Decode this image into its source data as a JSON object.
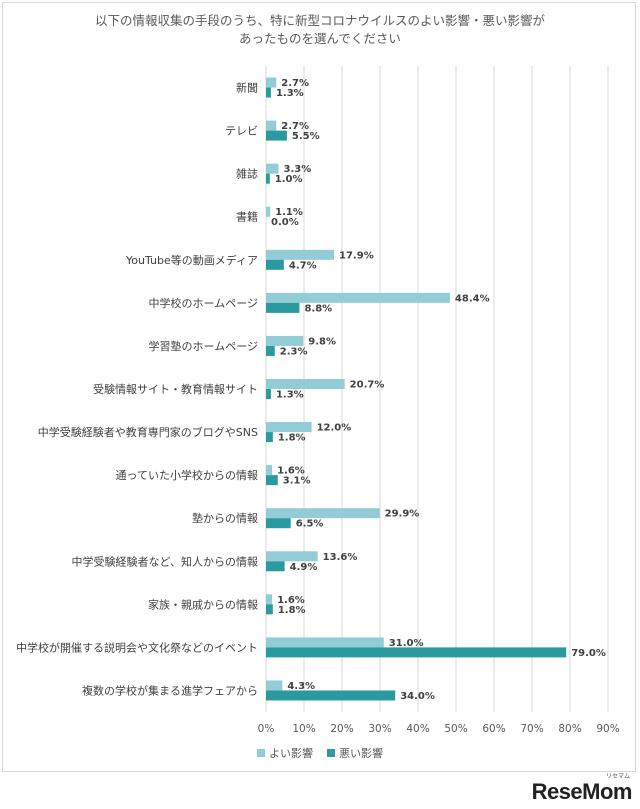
{
  "chart_data": {
    "type": "bar",
    "orientation": "horizontal",
    "title": "以下の情報収集の手段のうち、特に新型コロナウイルスのよい影響・悪い影響が",
    "title_line2": "あったものを選んでください",
    "categories": [
      "新聞",
      "テレビ",
      "雑誌",
      "書籍",
      "YouTube等の動画メディア",
      "中学校のホームページ",
      "学習塾のホームページ",
      "受験情報サイト・教育情報サイト",
      "中学受験経験者や教育専門家のブログやSNS",
      "通っていた小学校からの情報",
      "塾からの情報",
      "中学受験経験者など、知人からの情報",
      "家族・親戚からの情報",
      "中学校が開催する説明会や文化祭などのイベント",
      "複数の学校が集まる進学フェアから"
    ],
    "series": [
      {
        "name": "よい影響",
        "color": "#92cdd7",
        "values": [
          2.7,
          2.7,
          3.3,
          1.1,
          17.9,
          48.4,
          9.8,
          20.7,
          12.0,
          1.6,
          29.9,
          13.6,
          1.6,
          31.0,
          4.3
        ]
      },
      {
        "name": "悪い影響",
        "color": "#2a9a9e",
        "values": [
          1.3,
          5.5,
          1.0,
          0.0,
          4.7,
          8.8,
          2.3,
          1.3,
          1.8,
          3.1,
          6.5,
          4.9,
          1.8,
          79.0,
          34.0
        ]
      }
    ],
    "xlim": [
      0,
      90
    ],
    "xticks": [
      "0%",
      "10%",
      "20%",
      "30%",
      "40%",
      "50%",
      "60%",
      "70%",
      "80%",
      "90%"
    ],
    "grid": true,
    "legend_position": "bottom"
  },
  "logo": {
    "text": "ReseMom",
    "ruby": "リセマム"
  }
}
